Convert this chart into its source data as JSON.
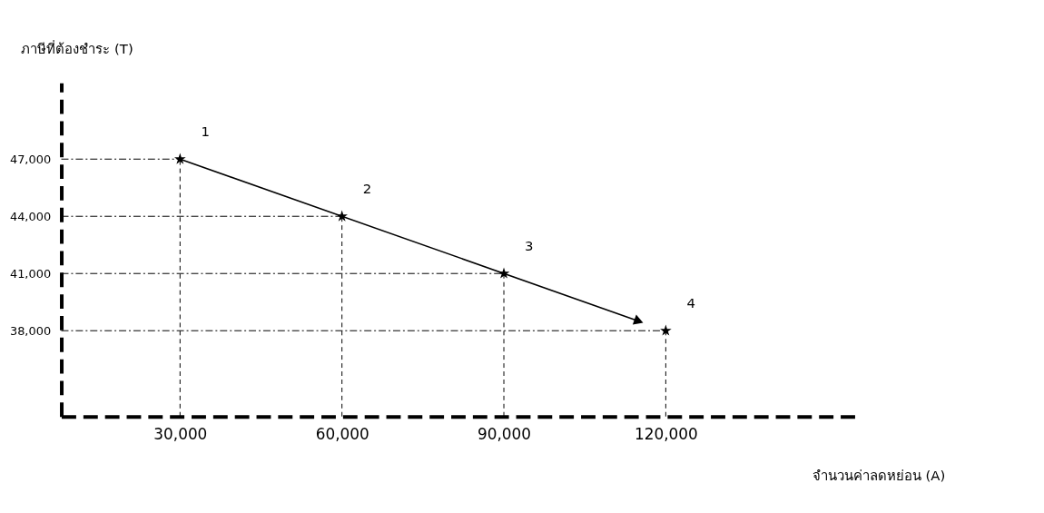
{
  "chart_data": {
    "type": "scatter",
    "xlabel": "จำนวนค่าลดหย่อน (A)",
    "ylabel": "ภาษีที่ต้องชำระ (T)",
    "xlim": [
      8000,
      155000
    ],
    "ylim": [
      33500,
      51000
    ],
    "xticks": [
      {
        "value": 30000,
        "label": "30,000"
      },
      {
        "value": 60000,
        "label": "60,000"
      },
      {
        "value": 90000,
        "label": "90,000"
      },
      {
        "value": 120000,
        "label": "120,000"
      }
    ],
    "yticks": [
      {
        "value": 38000,
        "label": "38,000"
      },
      {
        "value": 41000,
        "label": "41,000"
      },
      {
        "value": 44000,
        "label": "44,000"
      },
      {
        "value": 47000,
        "label": "47,000"
      }
    ],
    "series": [
      {
        "marker": "star",
        "color": "#000000",
        "x": [
          30000,
          60000,
          90000,
          120000
        ],
        "values": [
          47000,
          44000,
          41000,
          38000
        ]
      },
      {
        "type": "line",
        "color": "#000000",
        "line_style": "solid",
        "x": [
          30000,
          115000
        ],
        "values": [
          47000,
          38500
        ]
      },
      {
        "type": "line",
        "color": "#000000",
        "line_style": "dotted",
        "x": [
          8000,
          30000
        ],
        "values": [
          47000,
          47000
        ]
      },
      {
        "type": "line",
        "color": "#000000",
        "line_style": "dotted",
        "x": [
          8000,
          60000
        ],
        "values": [
          44000,
          44000
        ]
      },
      {
        "type": "line",
        "color": "#000000",
        "line_style": "dotted",
        "x": [
          8000,
          90000
        ],
        "values": [
          41000,
          41000
        ]
      },
      {
        "type": "line",
        "color": "#000000",
        "line_style": "dotted",
        "x": [
          8000,
          120000
        ],
        "values": [
          38000,
          38000
        ]
      },
      {
        "type": "line",
        "color": "#000000",
        "line_style": "dashed",
        "x": [
          30000,
          30000
        ],
        "values": [
          33500,
          47000
        ]
      },
      {
        "type": "line",
        "color": "#000000",
        "line_style": "dashed",
        "x": [
          60000,
          60000
        ],
        "values": [
          33500,
          44000
        ]
      },
      {
        "type": "line",
        "color": "#000000",
        "line_style": "dashed",
        "x": [
          90000,
          90000
        ],
        "values": [
          33500,
          41000
        ]
      },
      {
        "type": "line",
        "color": "#000000",
        "line_style": "dashed",
        "x": [
          120000,
          120000
        ],
        "values": [
          33500,
          38000
        ]
      }
    ],
    "annotations": [
      {
        "text": "1",
        "x": 30000,
        "y": 47000
      },
      {
        "text": "2",
        "x": 60000,
        "y": 44000
      },
      {
        "text": "3",
        "x": 90000,
        "y": 41000
      },
      {
        "text": "4",
        "x": 120000,
        "y": 38000
      }
    ]
  }
}
